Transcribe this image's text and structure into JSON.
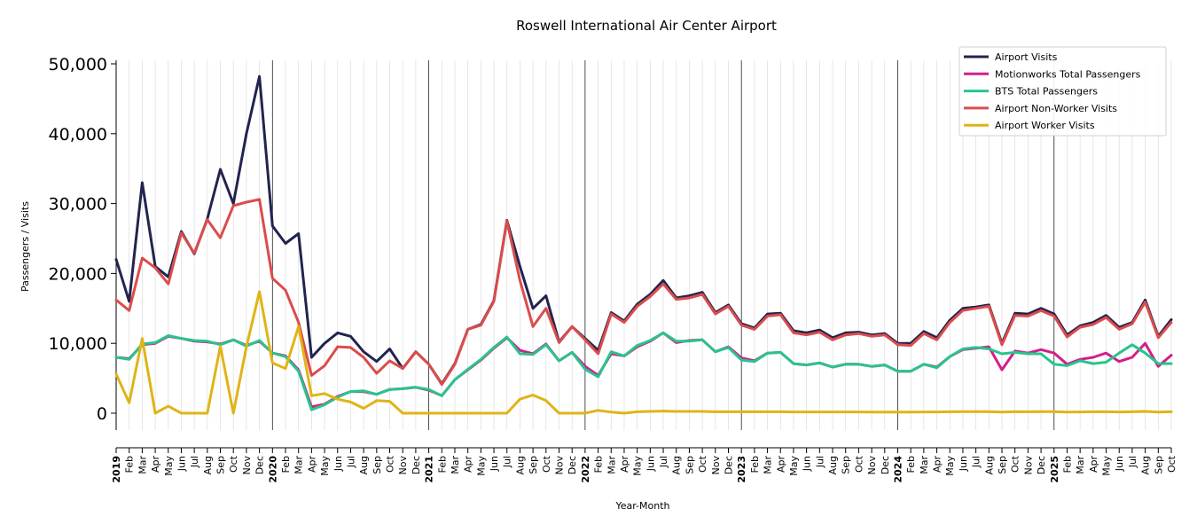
{
  "chart_data": {
    "type": "line",
    "title": "Roswell International Air Center Airport",
    "xlabel": "Year-Month",
    "ylabel": "Passengers / Visits",
    "ylim": [
      -2500,
      50500
    ],
    "yticks": [
      0,
      10000,
      20000,
      30000,
      40000,
      50000
    ],
    "ytick_labels": [
      "0",
      "10,000",
      "20,000",
      "30,000",
      "40,000",
      "50,000"
    ],
    "grid": "vertical monthly lines; year boundaries darker",
    "legend_position": "top-right",
    "x": [
      "2019-01",
      "2019-02",
      "2019-03",
      "2019-04",
      "2019-05",
      "2019-06",
      "2019-07",
      "2019-08",
      "2019-09",
      "2019-10",
      "2019-11",
      "2019-12",
      "2020-01",
      "2020-02",
      "2020-03",
      "2020-04",
      "2020-05",
      "2020-06",
      "2020-07",
      "2020-08",
      "2020-09",
      "2020-10",
      "2020-11",
      "2020-12",
      "2021-01",
      "2021-02",
      "2021-03",
      "2021-04",
      "2021-05",
      "2021-06",
      "2021-07",
      "2021-08",
      "2021-09",
      "2021-10",
      "2021-11",
      "2021-12",
      "2022-01",
      "2022-02",
      "2022-03",
      "2022-04",
      "2022-05",
      "2022-06",
      "2022-07",
      "2022-08",
      "2022-09",
      "2022-10",
      "2022-11",
      "2022-12",
      "2023-01",
      "2023-02",
      "2023-03",
      "2023-04",
      "2023-05",
      "2023-06",
      "2023-07",
      "2023-08",
      "2023-09",
      "2023-10",
      "2023-11",
      "2023-12",
      "2024-01",
      "2024-02",
      "2024-03",
      "2024-04",
      "2024-05",
      "2024-06",
      "2024-07",
      "2024-08",
      "2024-09",
      "2024-10",
      "2024-11",
      "2024-12",
      "2025-01",
      "2025-02",
      "2025-03",
      "2025-04",
      "2025-05",
      "2025-06",
      "2025-07",
      "2025-08",
      "2025-09",
      "2025-10"
    ],
    "tick_labels": [
      "2019",
      "Feb",
      "Mar",
      "Apr",
      "May",
      "Jun",
      "Jul",
      "Aug",
      "Sep",
      "Oct",
      "Nov",
      "Dec",
      "2020",
      "Feb",
      "Mar",
      "Apr",
      "May",
      "Jun",
      "Jul",
      "Aug",
      "Sep",
      "Oct",
      "Nov",
      "Dec",
      "2021",
      "Feb",
      "Mar",
      "Apr",
      "May",
      "Jun",
      "Jul",
      "Aug",
      "Sep",
      "Oct",
      "Nov",
      "Dec",
      "2022",
      "Feb",
      "Mar",
      "Apr",
      "May",
      "Jun",
      "Jul",
      "Aug",
      "Sep",
      "Oct",
      "Nov",
      "Dec",
      "2023",
      "Feb",
      "Mar",
      "Apr",
      "May",
      "Jun",
      "Jul",
      "Aug",
      "Sep",
      "Oct",
      "Nov",
      "Dec",
      "2024",
      "Feb",
      "Mar",
      "Apr",
      "May",
      "Jun",
      "Jul",
      "Aug",
      "Sep",
      "Oct",
      "Nov",
      "Dec",
      "2025",
      "Feb",
      "Mar",
      "Apr",
      "May",
      "Jun",
      "Jul",
      "Aug",
      "Sep",
      "Oct"
    ],
    "series": [
      {
        "name": "Airport Visits",
        "color": "#22244f",
        "values": [
          22000,
          16000,
          33000,
          21000,
          19500,
          26000,
          22800,
          27800,
          34900,
          30000,
          40000,
          48200,
          26800,
          24300,
          25700,
          8000,
          10000,
          11500,
          11000,
          8800,
          7400,
          9200,
          6400,
          8800,
          7000,
          4200,
          7100,
          12000,
          12700,
          16100,
          27600,
          21000,
          15000,
          16800,
          10200,
          12400,
          10700,
          9000,
          14400,
          13200,
          15600,
          17000,
          19000,
          16500,
          16800,
          17300,
          14400,
          15500,
          12800,
          12200,
          14200,
          14300,
          11800,
          11500,
          11900,
          10800,
          11500,
          11600,
          11200,
          11400,
          10000,
          10000,
          11700,
          10800,
          13300,
          15000,
          15200,
          15500,
          10000,
          14300,
          14200,
          15000,
          14200,
          11200,
          12500,
          13000,
          14000,
          12300,
          13000,
          16200,
          11000,
          13400
        ]
      },
      {
        "name": "Motionworks Total Passengers",
        "color": "#d21f8a",
        "values": [
          8000,
          7800,
          9800,
          10000,
          11000,
          10700,
          10300,
          10200,
          9900,
          10500,
          9700,
          10300,
          8600,
          8200,
          6200,
          900,
          1300,
          2400,
          3100,
          3100,
          2700,
          3400,
          3500,
          3700,
          3300,
          2500,
          4800,
          6200,
          7600,
          9300,
          10800,
          9000,
          8500,
          9900,
          7500,
          8700,
          6700,
          5400,
          8500,
          8200,
          9500,
          10300,
          11500,
          10100,
          10400,
          10500,
          8800,
          9500,
          7900,
          7500,
          8600,
          8700,
          7100,
          6900,
          7200,
          6600,
          7000,
          7000,
          6700,
          6900,
          6000,
          6000,
          7000,
          6600,
          8100,
          9100,
          9300,
          9500,
          6200,
          8900,
          8600,
          9100,
          8600,
          7000,
          7700,
          8000,
          8600,
          7400,
          8000,
          10000,
          6700,
          8300
        ]
      },
      {
        "name": "BTS Total Passengers",
        "color": "#28c48d",
        "values": [
          8000,
          7700,
          9900,
          10100,
          11100,
          10700,
          10400,
          10300,
          9800,
          10500,
          9600,
          10400,
          8600,
          8100,
          6000,
          500,
          1200,
          2300,
          3100,
          3200,
          2700,
          3400,
          3500,
          3700,
          3400,
          2500,
          4800,
          6300,
          7700,
          9400,
          10900,
          8500,
          8400,
          9800,
          7500,
          8700,
          6300,
          5200,
          8800,
          8200,
          9700,
          10400,
          11500,
          10300,
          10300,
          10500,
          8800,
          9400,
          7600,
          7400,
          8600,
          8700,
          7100,
          6900,
          7200,
          6600,
          7000,
          7000,
          6700,
          6900,
          6000,
          6000,
          7000,
          6500,
          8100,
          9200,
          9400,
          9200,
          8500,
          8700,
          8500,
          8500,
          7000,
          6800,
          7500,
          7100,
          7300,
          8600,
          9800,
          8600,
          7100,
          7100
        ]
      },
      {
        "name": "Airport Non-Worker Visits",
        "color": "#dc4c4c",
        "values": [
          16200,
          14700,
          22200,
          20800,
          18500,
          25800,
          22900,
          27700,
          25100,
          29700,
          30200,
          30600,
          19300,
          17600,
          13000,
          5400,
          6800,
          9500,
          9400,
          8000,
          5700,
          7500,
          6400,
          8800,
          7000,
          4100,
          7000,
          12000,
          12600,
          16000,
          27500,
          19000,
          12400,
          15000,
          10100,
          12400,
          10500,
          8500,
          14200,
          13000,
          15300,
          16700,
          18500,
          16300,
          16500,
          17000,
          14200,
          15300,
          12600,
          12000,
          13900,
          14100,
          11500,
          11200,
          11600,
          10500,
          11200,
          11400,
          11000,
          11200,
          9800,
          9700,
          11400,
          10500,
          13000,
          14700,
          15000,
          15300,
          9800,
          14000,
          13900,
          14700,
          13900,
          10900,
          12300,
          12700,
          13700,
          12000,
          12800,
          15900,
          10800,
          13000
        ]
      },
      {
        "name": "Airport Worker Visits",
        "color": "#e0b416",
        "values": [
          5600,
          1500,
          10700,
          0,
          1000,
          0,
          0,
          0,
          9600,
          0,
          9500,
          17400,
          7200,
          6400,
          12400,
          2500,
          2800,
          2000,
          1600,
          700,
          1800,
          1700,
          0,
          0,
          0,
          0,
          0,
          0,
          0,
          0,
          0,
          2000,
          2600,
          1800,
          0,
          0,
          0,
          400,
          150,
          0,
          200,
          250,
          300,
          250,
          250,
          250,
          200,
          200,
          200,
          200,
          200,
          200,
          180,
          180,
          180,
          180,
          180,
          180,
          150,
          150,
          150,
          150,
          180,
          180,
          200,
          220,
          230,
          230,
          150,
          200,
          200,
          220,
          220,
          150,
          180,
          200,
          200,
          180,
          200,
          250,
          150,
          200
        ]
      }
    ]
  }
}
